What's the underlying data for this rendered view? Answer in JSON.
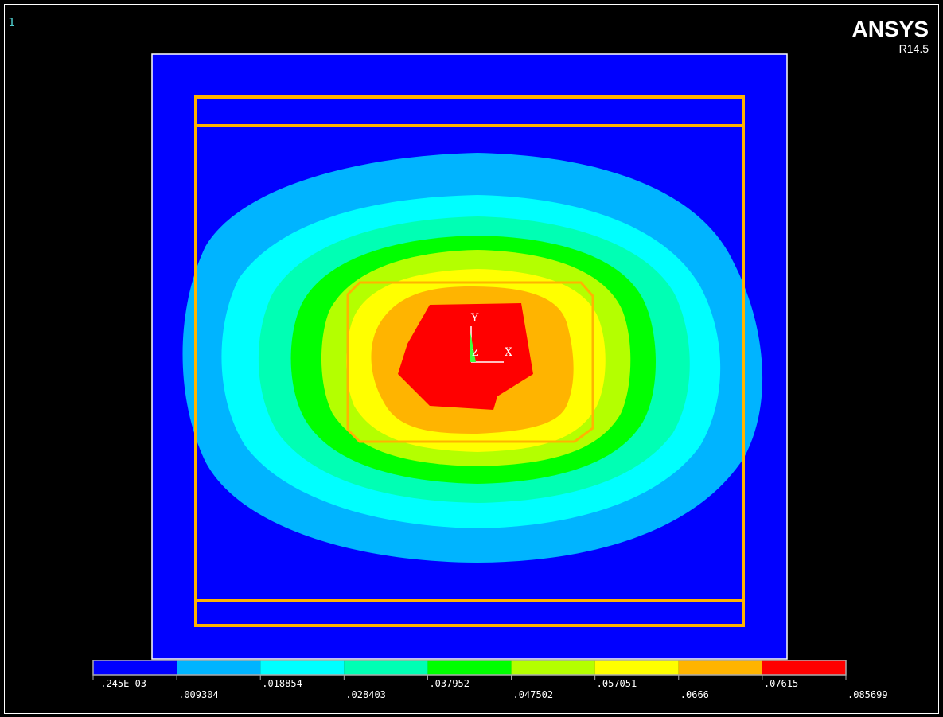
{
  "window_number": "1",
  "logo": {
    "name": "ANSYS",
    "version": "R14.5"
  },
  "triad": {
    "y_label": "Y",
    "z_label": "Z",
    "x_label": "X"
  },
  "legend": {
    "colors": [
      "#0000ff",
      "#00b4ff",
      "#00ffff",
      "#00ffb4",
      "#00ff00",
      "#b4ff00",
      "#ffff00",
      "#ffb400",
      "#ff0000"
    ],
    "labels": [
      "-.245E-03",
      ".009304",
      ".018854",
      ".028403",
      ".037952",
      ".047502",
      ".057051",
      ".0666",
      ".07615",
      ".085699"
    ]
  }
}
